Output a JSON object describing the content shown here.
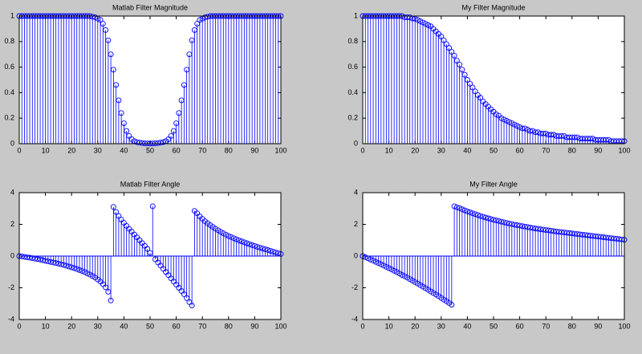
{
  "chart_data": [
    {
      "type": "stem",
      "title": "Matlab Filter Magnitude",
      "color": "#0000ff",
      "xlim": [
        0,
        100
      ],
      "ylim": [
        0,
        1
      ],
      "xticks": [
        0,
        10,
        20,
        30,
        40,
        50,
        60,
        70,
        80,
        90,
        100
      ],
      "yticks": [
        0,
        0.2,
        0.4,
        0.6,
        0.8,
        1
      ],
      "x": [
        0,
        1,
        2,
        3,
        4,
        5,
        6,
        7,
        8,
        9,
        10,
        11,
        12,
        13,
        14,
        15,
        16,
        17,
        18,
        19,
        20,
        21,
        22,
        23,
        24,
        25,
        26,
        27,
        28,
        29,
        30,
        31,
        32,
        33,
        34,
        35,
        36,
        37,
        38,
        39,
        40,
        41,
        42,
        43,
        44,
        45,
        46,
        47,
        48,
        49,
        50,
        51,
        52,
        53,
        54,
        55,
        56,
        57,
        58,
        59,
        60,
        61,
        62,
        63,
        64,
        65,
        66,
        67,
        68,
        69,
        70,
        71,
        72,
        73,
        74,
        75,
        76,
        77,
        78,
        79,
        80,
        81,
        82,
        83,
        84,
        85,
        86,
        87,
        88,
        89,
        90,
        91,
        92,
        93,
        94,
        95,
        96,
        97,
        98,
        99,
        100
      ],
      "values": [
        1,
        1,
        1,
        1,
        1,
        1,
        1,
        1,
        1,
        1,
        1,
        1,
        1,
        1,
        1,
        1,
        1,
        1,
        1,
        1,
        1,
        1,
        1,
        1,
        1,
        1,
        1,
        1,
        0.995,
        0.99,
        0.98,
        0.97,
        0.94,
        0.89,
        0.81,
        0.7,
        0.58,
        0.46,
        0.34,
        0.24,
        0.16,
        0.1,
        0.06,
        0.035,
        0.02,
        0.012,
        0.008,
        0.005,
        0.003,
        0.002,
        0.001,
        0.002,
        0.003,
        0.005,
        0.008,
        0.012,
        0.02,
        0.035,
        0.06,
        0.1,
        0.16,
        0.24,
        0.34,
        0.46,
        0.58,
        0.7,
        0.81,
        0.89,
        0.94,
        0.97,
        0.98,
        0.99,
        0.995,
        1,
        1,
        1,
        1,
        1,
        1,
        1,
        1,
        1,
        1,
        1,
        1,
        1,
        1,
        1,
        1,
        1,
        1,
        1,
        1,
        1,
        1,
        1,
        1,
        1,
        1,
        1,
        1
      ]
    },
    {
      "type": "stem",
      "title": "My Filter Magnitude",
      "color": "#0000ff",
      "xlim": [
        0,
        100
      ],
      "ylim": [
        0,
        1
      ],
      "xticks": [
        0,
        10,
        20,
        30,
        40,
        50,
        60,
        70,
        80,
        90,
        100
      ],
      "yticks": [
        0,
        0.2,
        0.4,
        0.6,
        0.8,
        1
      ],
      "x": [
        0,
        1,
        2,
        3,
        4,
        5,
        6,
        7,
        8,
        9,
        10,
        11,
        12,
        13,
        14,
        15,
        16,
        17,
        18,
        19,
        20,
        21,
        22,
        23,
        24,
        25,
        26,
        27,
        28,
        29,
        30,
        31,
        32,
        33,
        34,
        35,
        36,
        37,
        38,
        39,
        40,
        41,
        42,
        43,
        44,
        45,
        46,
        47,
        48,
        49,
        50,
        51,
        52,
        53,
        54,
        55,
        56,
        57,
        58,
        59,
        60,
        61,
        62,
        63,
        64,
        65,
        66,
        67,
        68,
        69,
        70,
        71,
        72,
        73,
        74,
        75,
        76,
        77,
        78,
        79,
        80,
        81,
        82,
        83,
        84,
        85,
        86,
        87,
        88,
        89,
        90,
        91,
        92,
        93,
        94,
        95,
        96,
        97,
        98,
        99,
        100
      ],
      "values": [
        1,
        1,
        1,
        1,
        1,
        1,
        1,
        1,
        1,
        1,
        1,
        1,
        1,
        1,
        1,
        1,
        0.99,
        0.99,
        0.99,
        0.98,
        0.98,
        0.97,
        0.96,
        0.95,
        0.94,
        0.93,
        0.92,
        0.9,
        0.88,
        0.86,
        0.84,
        0.81,
        0.78,
        0.75,
        0.72,
        0.69,
        0.65,
        0.62,
        0.58,
        0.54,
        0.5,
        0.47,
        0.44,
        0.41,
        0.38,
        0.36,
        0.33,
        0.31,
        0.29,
        0.27,
        0.25,
        0.23,
        0.22,
        0.2,
        0.19,
        0.18,
        0.17,
        0.16,
        0.15,
        0.14,
        0.13,
        0.12,
        0.12,
        0.11,
        0.1,
        0.1,
        0.09,
        0.09,
        0.08,
        0.08,
        0.08,
        0.07,
        0.07,
        0.07,
        0.06,
        0.06,
        0.06,
        0.06,
        0.05,
        0.05,
        0.05,
        0.05,
        0.05,
        0.04,
        0.04,
        0.04,
        0.04,
        0.04,
        0.04,
        0.03,
        0.03,
        0.03,
        0.03,
        0.03,
        0.03,
        0.02,
        0.02,
        0.02,
        0.02,
        0.02,
        0.02
      ]
    },
    {
      "type": "stem",
      "title": "Matlab Filter Angle",
      "color": "#0000ff",
      "xlim": [
        0,
        100
      ],
      "ylim": [
        -4,
        4
      ],
      "xticks": [
        0,
        10,
        20,
        30,
        40,
        50,
        60,
        70,
        80,
        90,
        100
      ],
      "yticks": [
        -4,
        -2,
        0,
        2,
        4
      ],
      "x": [
        0,
        1,
        2,
        3,
        4,
        5,
        6,
        7,
        8,
        9,
        10,
        11,
        12,
        13,
        14,
        15,
        16,
        17,
        18,
        19,
        20,
        21,
        22,
        23,
        24,
        25,
        26,
        27,
        28,
        29,
        30,
        31,
        32,
        33,
        34,
        35,
        36,
        37,
        38,
        39,
        40,
        41,
        42,
        43,
        44,
        45,
        46,
        47,
        48,
        49,
        50,
        51,
        52,
        53,
        54,
        55,
        56,
        57,
        58,
        59,
        60,
        61,
        62,
        63,
        64,
        65,
        66,
        67,
        68,
        69,
        70,
        71,
        72,
        73,
        74,
        75,
        76,
        77,
        78,
        79,
        80,
        81,
        82,
        83,
        84,
        85,
        86,
        87,
        88,
        89,
        90,
        91,
        92,
        93,
        94,
        95,
        96,
        97,
        98,
        99,
        100
      ],
      "values": [
        0,
        -0.02,
        -0.05,
        -0.08,
        -0.1,
        -0.13,
        -0.16,
        -0.19,
        -0.22,
        -0.26,
        -0.3,
        -0.33,
        -0.37,
        -0.4,
        -0.44,
        -0.48,
        -0.52,
        -0.56,
        -0.61,
        -0.66,
        -0.71,
        -0.76,
        -0.82,
        -0.88,
        -0.94,
        -1.01,
        -1.09,
        -1.17,
        -1.26,
        -1.36,
        -1.48,
        -1.61,
        -1.77,
        -1.97,
        -2.25,
        -2.8,
        3.1,
        2.78,
        2.52,
        2.3,
        2.1,
        1.9,
        1.72,
        1.54,
        1.36,
        1.18,
        1,
        0.82,
        0.64,
        0.45,
        0.2,
        3.14,
        -0.2,
        -0.4,
        -0.6,
        -0.8,
        -1,
        -1.2,
        -1.4,
        -1.6,
        -1.8,
        -2,
        -2.2,
        -2.4,
        -2.65,
        -2.9,
        -3.12,
        2.85,
        2.7,
        2.5,
        2.35,
        2.2,
        2.07,
        1.95,
        1.84,
        1.73,
        1.63,
        1.53,
        1.44,
        1.35,
        1.27,
        1.2,
        1.13,
        1.06,
        0.99,
        0.93,
        0.87,
        0.81,
        0.75,
        0.69,
        0.64,
        0.58,
        0.53,
        0.48,
        0.43,
        0.38,
        0.33,
        0.28,
        0.23,
        0.18,
        0.13
      ]
    },
    {
      "type": "stem",
      "title": "My Filter Angle",
      "color": "#0000ff",
      "xlim": [
        0,
        100
      ],
      "ylim": [
        -4,
        4
      ],
      "xticks": [
        0,
        10,
        20,
        30,
        40,
        50,
        60,
        70,
        80,
        90,
        100
      ],
      "yticks": [
        -4,
        -2,
        0,
        2,
        4
      ],
      "x": [
        0,
        1,
        2,
        3,
        4,
        5,
        6,
        7,
        8,
        9,
        10,
        11,
        12,
        13,
        14,
        15,
        16,
        17,
        18,
        19,
        20,
        21,
        22,
        23,
        24,
        25,
        26,
        27,
        28,
        29,
        30,
        31,
        32,
        33,
        34,
        35,
        36,
        37,
        38,
        39,
        40,
        41,
        42,
        43,
        44,
        45,
        46,
        47,
        48,
        49,
        50,
        51,
        52,
        53,
        54,
        55,
        56,
        57,
        58,
        59,
        60,
        61,
        62,
        63,
        64,
        65,
        66,
        67,
        68,
        69,
        70,
        71,
        72,
        73,
        74,
        75,
        76,
        77,
        78,
        79,
        80,
        81,
        82,
        83,
        84,
        85,
        86,
        87,
        88,
        89,
        90,
        91,
        92,
        93,
        94,
        95,
        96,
        97,
        98,
        99,
        100
      ],
      "values": [
        0,
        -0.07,
        -0.14,
        -0.22,
        -0.29,
        -0.37,
        -0.44,
        -0.52,
        -0.6,
        -0.68,
        -0.76,
        -0.84,
        -0.93,
        -1.01,
        -1.1,
        -1.19,
        -1.27,
        -1.36,
        -1.45,
        -1.55,
        -1.64,
        -1.73,
        -1.83,
        -1.93,
        -2.03,
        -2.13,
        -2.23,
        -2.33,
        -2.43,
        -2.53,
        -2.64,
        -2.75,
        -2.85,
        -2.96,
        -3.07,
        3.14,
        3.08,
        3.02,
        2.95,
        2.88,
        2.82,
        2.76,
        2.7,
        2.64,
        2.59,
        2.53,
        2.48,
        2.43,
        2.38,
        2.34,
        2.29,
        2.25,
        2.21,
        2.17,
        2.13,
        2.09,
        2.05,
        2.02,
        1.98,
        1.95,
        1.92,
        1.89,
        1.86,
        1.83,
        1.8,
        1.77,
        1.74,
        1.72,
        1.69,
        1.67,
        1.64,
        1.62,
        1.6,
        1.57,
        1.55,
        1.53,
        1.51,
        1.49,
        1.47,
        1.45,
        1.43,
        1.41,
        1.39,
        1.37,
        1.35,
        1.33,
        1.31,
        1.29,
        1.27,
        1.25,
        1.23,
        1.21,
        1.19,
        1.17,
        1.15,
        1.13,
        1.11,
        1.09,
        1.07,
        1.05,
        1.03
      ]
    }
  ]
}
